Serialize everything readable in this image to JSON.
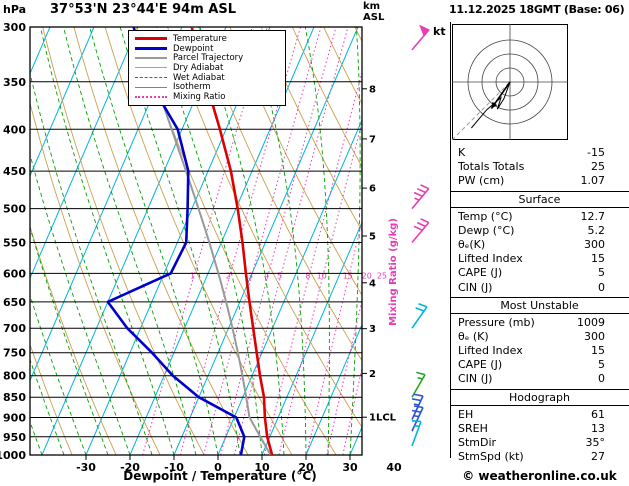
{
  "header": {
    "pressure_unit": "hPa",
    "station_title": "37°53'N 23°44'E 94m ASL",
    "datetime_title": "11.12.2025 18GMT (Base: 06)",
    "altitude_unit_line1": "km",
    "altitude_unit_line2": "ASL"
  },
  "legend": {
    "items": [
      {
        "label": "Temperature",
        "color": "#dd0000",
        "style": "solid",
        "weight": 3
      },
      {
        "label": "Dewpoint",
        "color": "#0000cc",
        "style": "solid",
        "weight": 3
      },
      {
        "label": "Parcel Trajectory",
        "color": "#999999",
        "style": "solid",
        "weight": 2
      },
      {
        "label": "Dry Adiabat",
        "color": "#c9a14e",
        "style": "solid",
        "weight": 1
      },
      {
        "label": "Wet Adiabat",
        "color": "#00a000",
        "style": "dashed",
        "weight": 1
      },
      {
        "label": "Isotherm",
        "color": "#00b4dc",
        "style": "solid",
        "weight": 1
      },
      {
        "label": "Mixing Ratio",
        "color": "#e83eb4",
        "style": "dotted",
        "weight": 2
      }
    ]
  },
  "chart_data": {
    "type": "line",
    "subtype": "skewt-logp-sounding",
    "title": "37°53'N 23°44'E 94m ASL",
    "xlabel": "Dewpoint / Temperature (°C)",
    "ylabel_left": "hPa",
    "ylabel_right": "km ASL",
    "x_ticks": [
      -30,
      -20,
      -10,
      0,
      10,
      20,
      30,
      40
    ],
    "pressure_ticks": [
      300,
      350,
      400,
      450,
      500,
      550,
      600,
      650,
      700,
      750,
      800,
      850,
      900,
      950,
      1000
    ],
    "km_labels": [
      {
        "label": "8",
        "p": 357
      },
      {
        "label": "7",
        "p": 411
      },
      {
        "label": "6",
        "p": 472
      },
      {
        "label": "5",
        "p": 540
      },
      {
        "label": "4",
        "p": 616
      },
      {
        "label": "3",
        "p": 701
      },
      {
        "label": "2",
        "p": 795
      },
      {
        "label": "1LCL",
        "p": 899
      }
    ],
    "mixing_ratio_label": "Mixing Ratio (g/kg)",
    "mixing_ratio_values": [
      1,
      2,
      3,
      4,
      5,
      8,
      10,
      15,
      20,
      25
    ],
    "temperature_profile": [
      [
        1000,
        12.3
      ],
      [
        950,
        9.4
      ],
      [
        900,
        7.0
      ],
      [
        850,
        4.8
      ],
      [
        800,
        1.8
      ],
      [
        750,
        -1.2
      ],
      [
        700,
        -4.4
      ],
      [
        650,
        -7.8
      ],
      [
        600,
        -11.4
      ],
      [
        550,
        -15.2
      ],
      [
        500,
        -19.6
      ],
      [
        450,
        -24.8
      ],
      [
        400,
        -31.4
      ],
      [
        350,
        -39.2
      ],
      [
        300,
        -47.8
      ]
    ],
    "dewpoint_profile": [
      [
        1000,
        5.2
      ],
      [
        950,
        4.2
      ],
      [
        900,
        0.5
      ],
      [
        850,
        -10.0
      ],
      [
        800,
        -18.0
      ],
      [
        750,
        -25.0
      ],
      [
        700,
        -33.0
      ],
      [
        650,
        -40.0
      ],
      [
        600,
        -28.5
      ],
      [
        550,
        -28.0
      ],
      [
        500,
        -31.0
      ],
      [
        450,
        -34.5
      ],
      [
        400,
        -41.0
      ],
      [
        350,
        -52.0
      ],
      [
        300,
        -61.0
      ]
    ],
    "parcel_surface": {
      "pressure_mb": 1009,
      "temp_c": 12.7,
      "dewp_c": 5.2
    },
    "winds": [
      {
        "p": 320,
        "spd": 50,
        "dir": 40,
        "color": "#e83eb4"
      },
      {
        "p": 500,
        "spd": 35,
        "dir": 40,
        "color": "#e83eb4"
      },
      {
        "p": 550,
        "spd": 30,
        "dir": 40,
        "color": "#e83eb4"
      },
      {
        "p": 700,
        "spd": 20,
        "dir": 35,
        "color": "#00b4dc"
      },
      {
        "p": 850,
        "spd": 15,
        "dir": 30,
        "color": "#2aa52a"
      },
      {
        "p": 905,
        "spd": 25,
        "dir": 25,
        "color": "#2b50d4"
      },
      {
        "p": 935,
        "spd": 25,
        "dir": 25,
        "color": "#2b50d4"
      },
      {
        "p": 975,
        "spd": 15,
        "dir": 20,
        "color": "#00b4dc"
      }
    ],
    "colors": {
      "temperature": "#dd0000",
      "dewpoint": "#0000cc",
      "parcel": "#999999",
      "dry_adiabat": "#c9a14e",
      "wet_adiabat": "#00a000",
      "isotherm": "#00b4dc",
      "mixing_ratio": "#e83eb4",
      "isobar": "#000000"
    }
  },
  "hodograph": {
    "unit": "kt",
    "rings_kt": [
      10,
      20,
      30
    ],
    "storm_dir_deg": 35,
    "storm_speed_kt": 27
  },
  "panel": {
    "sections": [
      {
        "title": null,
        "rows": [
          [
            "K",
            "-15"
          ],
          [
            "Totals Totals",
            "25"
          ],
          [
            "PW (cm)",
            "1.07"
          ]
        ]
      },
      {
        "title": "Surface",
        "rows": [
          [
            "Temp (°C)",
            "12.7"
          ],
          [
            "Dewp (°C)",
            "5.2"
          ],
          [
            "θₑ(K)",
            "300"
          ],
          [
            "Lifted Index",
            "15"
          ],
          [
            "CAPE (J)",
            "5"
          ],
          [
            "CIN (J)",
            "0"
          ]
        ]
      },
      {
        "title": "Most Unstable",
        "rows": [
          [
            "Pressure (mb)",
            "1009"
          ],
          [
            "θₑ (K)",
            "300"
          ],
          [
            "Lifted Index",
            "15"
          ],
          [
            "CAPE (J)",
            "5"
          ],
          [
            "CIN (J)",
            "0"
          ]
        ]
      },
      {
        "title": "Hodograph",
        "rows": [
          [
            "EH",
            "61"
          ],
          [
            "SREH",
            "13"
          ],
          [
            "StmDir",
            "35°"
          ],
          [
            "StmSpd (kt)",
            "27"
          ]
        ]
      }
    ]
  },
  "footer": {
    "credit": "© weatheronline.co.uk"
  }
}
